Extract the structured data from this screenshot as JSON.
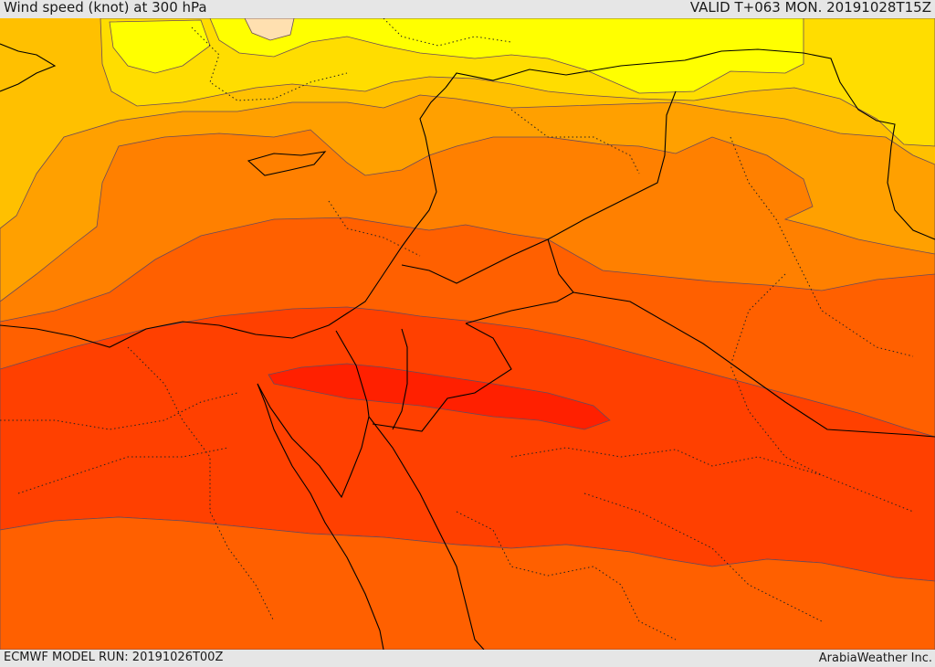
{
  "header": {
    "title": "Wind speed (knot) at 300 hPa",
    "valid": "VALID T+063 MON. 20191028T15Z"
  },
  "footer": {
    "model_run": "ECMWF MODEL RUN: 20191026T00Z",
    "credit": "ArabiaWeather Inc."
  },
  "colors": {
    "band_light_yellow": "#ffff00",
    "band_yellow": "#ffdd00",
    "band_gold": "#ffbf00",
    "band_amber": "#ffa000",
    "band_orange": "#ff8000",
    "band_dark_orange": "#ff6000",
    "band_red_orange": "#ff4000",
    "band_red": "#ff2000",
    "band_peach": "#ffe0b0",
    "contour_line": "#5a3a6e",
    "border_line": "#000000"
  }
}
